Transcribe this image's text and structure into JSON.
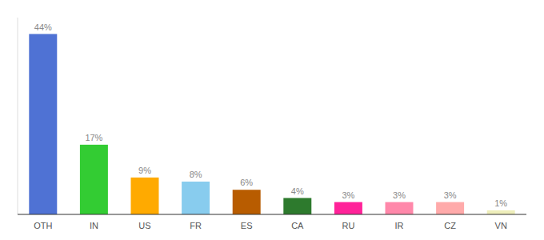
{
  "chart_data": {
    "type": "bar",
    "categories": [
      "OTH",
      "IN",
      "US",
      "FR",
      "ES",
      "CA",
      "RU",
      "IR",
      "CZ",
      "VN"
    ],
    "values": [
      44,
      17,
      9,
      8,
      6,
      4,
      3,
      3,
      3,
      1
    ],
    "value_labels": [
      "44%",
      "17%",
      "9%",
      "8%",
      "6%",
      "4%",
      "3%",
      "3%",
      "3%",
      "1%"
    ],
    "colors": [
      "#4f72d4",
      "#33cc33",
      "#ffaa00",
      "#88ccee",
      "#b85c00",
      "#2d7a2d",
      "#ff2299",
      "#ff88aa",
      "#ffaaaa",
      "#eeeebb"
    ],
    "ylim": [
      0,
      48
    ],
    "data_labels": true,
    "tick_labels": "x",
    "grid": false
  }
}
